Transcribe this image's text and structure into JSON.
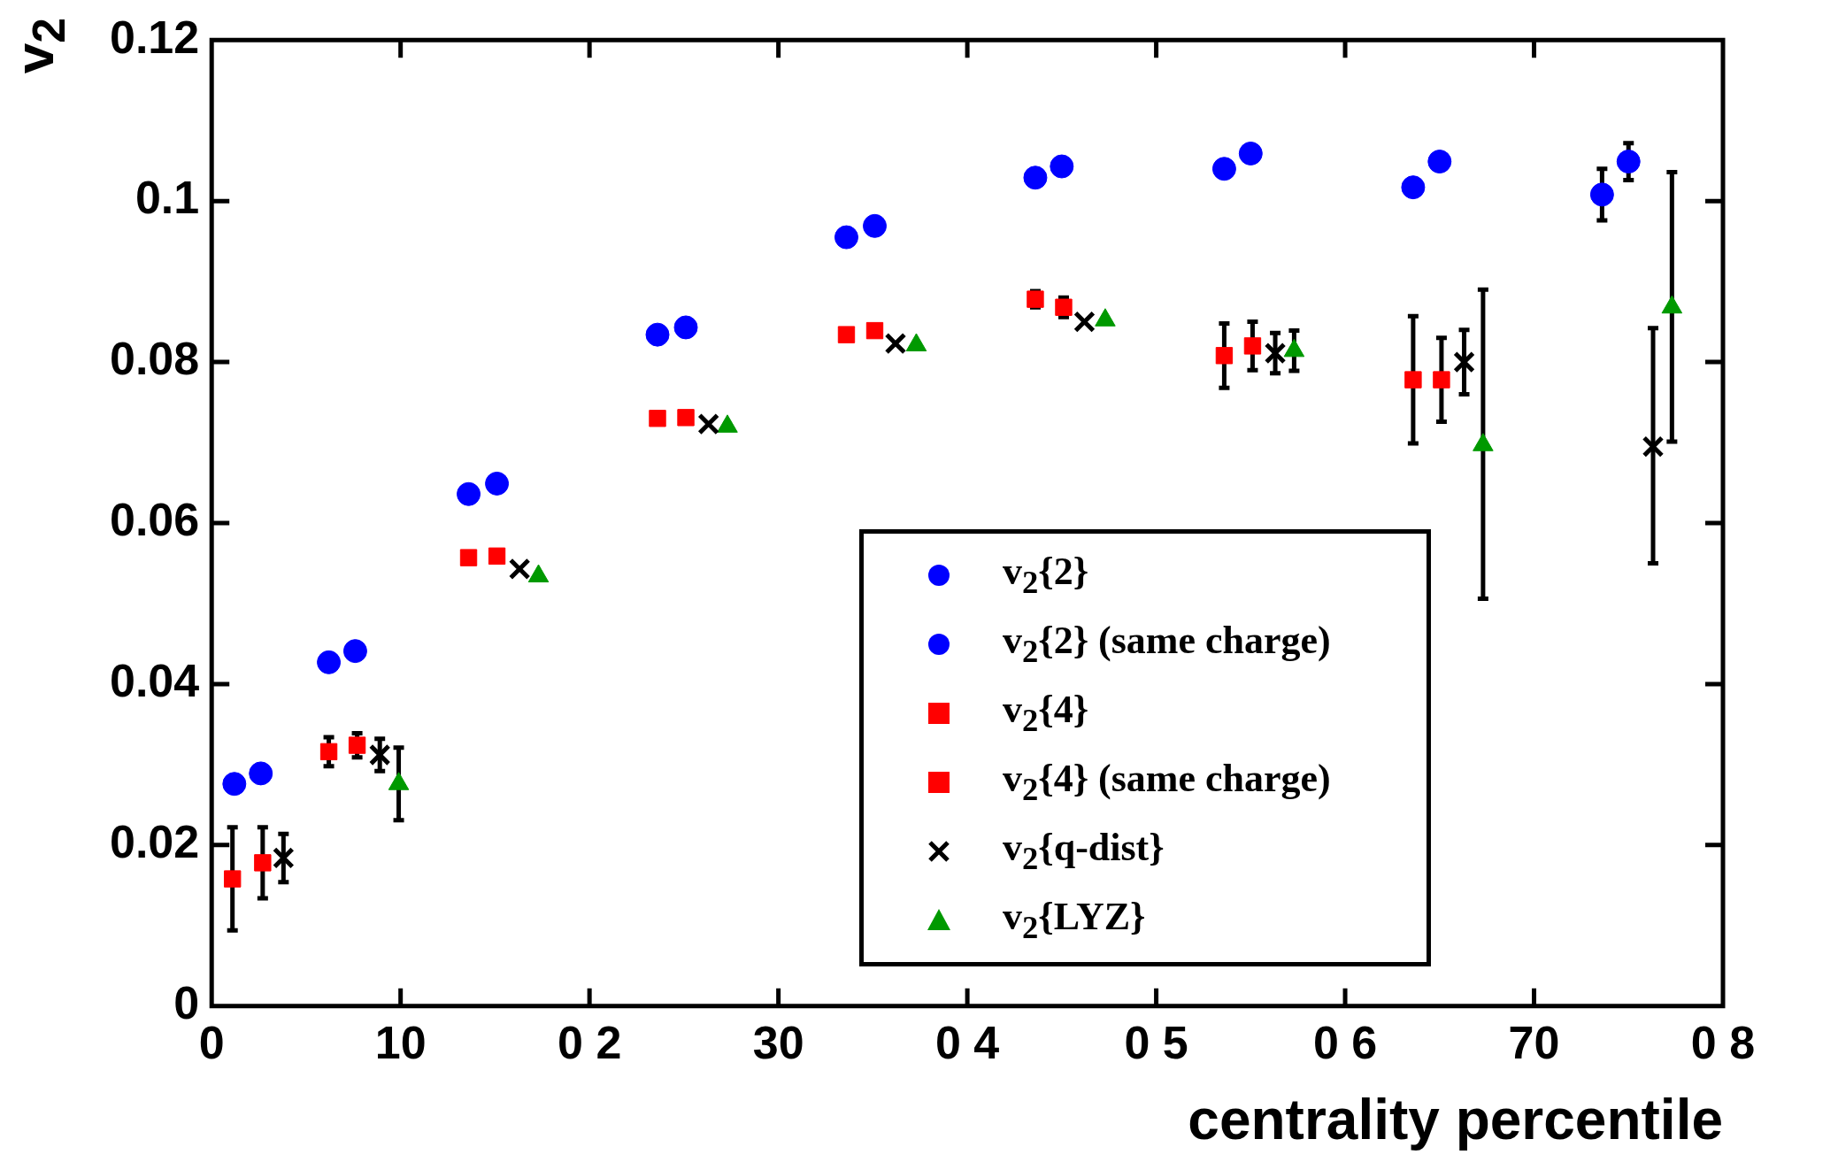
{
  "chart_data": {
    "type": "scatter",
    "xlabel": "centrality percentile",
    "ylabel": "v$_{2}$",
    "xlim": [
      0,
      80
    ],
    "xticks": [
      0,
      10,
      {
        "value": 20,
        "label": "0 2"
      },
      30,
      {
        "value": 40,
        "label": "0 4"
      },
      {
        "value": 50,
        "label": "0 5"
      },
      {
        "value": 60,
        "label": "0 6"
      },
      70,
      {
        "value": 80,
        "label": "0 8"
      }
    ],
    "ylim": [
      0,
      0.12
    ],
    "yticks": [
      0,
      0.02,
      0.04,
      0.06,
      0.08,
      0.1,
      0.12
    ],
    "grid": false,
    "legend": "bottom right",
    "series": [
      {
        "name": "v$_{2}${2}",
        "color": "#0000ff",
        "marker": "circle",
        "x": [
          2.6,
          7.6,
          15.1,
          25.1,
          35.1,
          45.0,
          55.0,
          65.0,
          75.0
        ],
        "values": [
          0.0289,
          0.0441,
          0.0649,
          0.0843,
          0.0969,
          0.1043,
          0.1059,
          0.1049,
          0.1049
        ],
        "errors": [
          null,
          null,
          null,
          null,
          null,
          null,
          null,
          null,
          0.0023
        ]
      },
      {
        "name": "v$_{2}${2} (same charge)",
        "color": "#0000ff",
        "marker": "circle",
        "x": [
          1.2,
          6.2,
          13.6,
          23.6,
          33.6,
          43.6,
          53.6,
          63.6,
          73.6
        ],
        "values": [
          0.0276,
          0.0427,
          0.0636,
          0.0834,
          0.0955,
          0.1029,
          0.104,
          0.1017,
          0.1008
        ],
        "errors": [
          null,
          null,
          null,
          null,
          null,
          null,
          null,
          null,
          0.0032
        ]
      },
      {
        "name": "v$_{2}${4}",
        "color": "#ff0000",
        "marker": "square",
        "x": [
          2.7,
          7.7,
          15.1,
          25.1,
          35.1,
          45.1,
          55.1,
          65.1
        ],
        "values": [
          0.0178,
          0.0324,
          0.0559,
          0.0731,
          0.0839,
          0.0868,
          0.082,
          0.0778
        ],
        "errors": [
          0.0044,
          0.0015,
          null,
          null,
          null,
          0.0012,
          0.003,
          0.0052
        ]
      },
      {
        "name": "v$_{2}${4} (same charge)",
        "color": "#ff0000",
        "marker": "square",
        "x": [
          1.1,
          6.2,
          13.6,
          23.6,
          33.6,
          43.6,
          53.6,
          63.6
        ],
        "values": [
          0.0158,
          0.0316,
          0.0557,
          0.073,
          0.0834,
          0.0878,
          0.0808,
          0.0778
        ],
        "errors": [
          0.0064,
          0.0018,
          null,
          null,
          null,
          0.001,
          0.004,
          0.0079
        ]
      },
      {
        "name": "v$_{2}${q-dist}",
        "color": "#000000",
        "marker": "cross",
        "x": [
          3.8,
          8.9,
          16.3,
          26.3,
          36.2,
          46.2,
          56.3,
          66.3,
          76.3
        ],
        "values": [
          0.0184,
          0.0312,
          0.0543,
          0.0723,
          0.0823,
          0.085,
          0.0811,
          0.08,
          0.0695
        ],
        "errors": [
          0.003,
          0.002,
          null,
          null,
          null,
          null,
          0.0025,
          0.004,
          [
            0.055,
            0.0842
          ]
        ]
      },
      {
        "name": "v$_{2}${LYZ}",
        "color": "#009900",
        "marker": "triangle",
        "x": [
          9.9,
          17.3,
          27.3,
          37.3,
          47.3,
          57.3,
          67.3,
          77.3
        ],
        "values": [
          0.0276,
          0.0534,
          0.072,
          0.0821,
          0.0852,
          0.0814,
          0.0697,
          0.0868
        ],
        "errors": [
          0.0045,
          null,
          null,
          null,
          null,
          0.0025,
          [
            0.0506,
            0.089
          ],
          [
            0.0701,
            0.1036
          ]
        ]
      }
    ]
  }
}
